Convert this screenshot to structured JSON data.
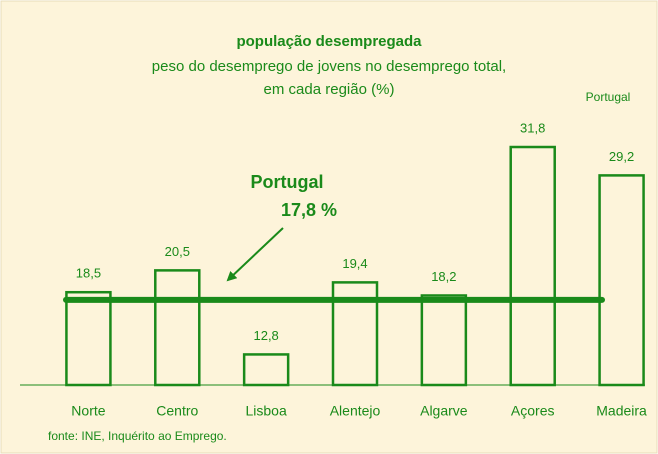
{
  "chart_data": {
    "type": "bar",
    "title": "população desempregada",
    "subtitle": [
      "peso do desemprego de jovens no desemprego total,",
      "em cada região (%)"
    ],
    "legend_text": "Portugal",
    "source": "fonte: INE, Inquérito ao Emprego.",
    "categories": [
      "Norte",
      "Centro",
      "Lisboa",
      "Alentejo",
      "Algarve",
      "Açores",
      "Madeira"
    ],
    "values": [
      18.5,
      20.5,
      12.8,
      19.4,
      18.2,
      31.8,
      29.2
    ],
    "value_labels": [
      "18,5",
      "20,5",
      "12,8",
      "19,4",
      "18,2",
      "31,8",
      "29,2"
    ],
    "color": "#1a8a1a",
    "ylim": [
      10,
      34
    ],
    "reference": {
      "name": "Portugal",
      "value": 17.8,
      "label": "17,8 %"
    }
  }
}
